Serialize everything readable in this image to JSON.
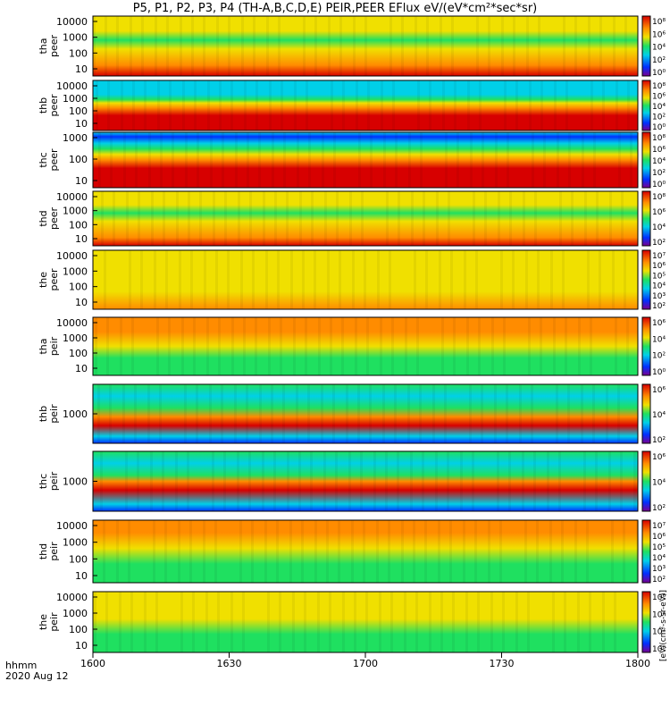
{
  "title": "P5, P1, P2, P3, P4 (TH-A,B,C,D,E) PEIR,PEER EFlux eV/(eV*cm²*sec*sr)",
  "time_axis": {
    "unit_label": "hhmm",
    "date_label": "2020 Aug 12",
    "ticks": [
      "1600",
      "1630",
      "1700",
      "1730",
      "1800"
    ]
  },
  "colorbar_label": "[eV/(cm²-s-sr-eV)]",
  "colors": {
    "red": "#d70000",
    "orange": "#ff8c00",
    "yellow": "#f0e000",
    "green": "#1fe060",
    "cyan": "#00d0e8",
    "blue": "#0030ff",
    "purple": "#7a0090"
  },
  "chart_data": {
    "type": "heatmap",
    "x_range": [
      "16:00",
      "18:00"
    ],
    "log_y": true,
    "panels": [
      {
        "probe": "tha",
        "species": "peer",
        "ylabels": [
          "10000",
          "1000",
          "100",
          "10"
        ],
        "cb_ticks": [
          "10⁸",
          "10⁶",
          "10⁴",
          "10²",
          "10⁰"
        ]
      },
      {
        "probe": "thb",
        "species": "peer",
        "ylabels": [
          "10000",
          "1000",
          "100",
          "10"
        ],
        "cb_ticks": [
          "10⁸",
          "10⁶",
          "10⁴",
          "10²",
          "10⁰"
        ]
      },
      {
        "probe": "thc",
        "species": "peer",
        "ylabels": [
          "1000",
          "100",
          "10"
        ],
        "cb_ticks": [
          "10⁸",
          "10⁶",
          "10⁴",
          "10²",
          "10⁰"
        ]
      },
      {
        "probe": "thd",
        "species": "peer",
        "ylabels": [
          "10000",
          "1000",
          "100",
          "10"
        ],
        "cb_ticks": [
          "10⁸",
          "10⁶",
          "10⁴",
          "10²"
        ]
      },
      {
        "probe": "the",
        "species": "peer",
        "ylabels": [
          "10000",
          "1000",
          "100",
          "10"
        ],
        "cb_ticks": [
          "10⁷",
          "10⁶",
          "10⁵",
          "10⁴",
          "10³",
          "10²"
        ]
      },
      {
        "probe": "tha",
        "species": "peir",
        "ylabels": [
          "10000",
          "1000",
          "100",
          "10"
        ],
        "cb_ticks": [
          "10⁶",
          "10⁴",
          "10²",
          "10⁰"
        ]
      },
      {
        "probe": "thb",
        "species": "peir",
        "ylabels": [
          "1000"
        ],
        "cb_ticks": [
          "10⁶",
          "10⁴",
          "10²"
        ]
      },
      {
        "probe": "thc",
        "species": "peir",
        "ylabels": [
          "1000"
        ],
        "cb_ticks": [
          "10⁶",
          "10⁴",
          "10²"
        ]
      },
      {
        "probe": "thd",
        "species": "peir",
        "ylabels": [
          "10000",
          "1000",
          "100",
          "10"
        ],
        "cb_ticks": [
          "10⁷",
          "10⁶",
          "10⁵",
          "10⁴",
          "10³",
          "10²"
        ]
      },
      {
        "probe": "the",
        "species": "peir",
        "ylabels": [
          "10000",
          "1000",
          "100",
          "10"
        ],
        "cb_ticks": [
          "10⁶",
          "10⁴",
          "10²",
          "10⁰"
        ]
      }
    ]
  }
}
